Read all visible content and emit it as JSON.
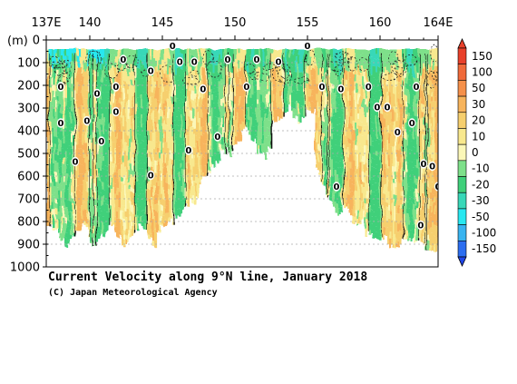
{
  "chart_data": {
    "type": "heatmap",
    "title": "Current Velocity along 9°N line, January 2018",
    "credit": "(C) Japan Meteorological Agency",
    "x_unit_label": "",
    "y_unit_label": "(m)",
    "xlim": [
      137,
      164
    ],
    "ylim": [
      0,
      1000
    ],
    "x_ticks": [
      {
        "value": 137,
        "label": "137E"
      },
      {
        "value": 140,
        "label": "140"
      },
      {
        "value": 145,
        "label": "145"
      },
      {
        "value": 150,
        "label": "150"
      },
      {
        "value": 155,
        "label": "155"
      },
      {
        "value": 160,
        "label": "160"
      },
      {
        "value": 164,
        "label": "164E"
      }
    ],
    "y_ticks": [
      {
        "value": 0,
        "label": "0"
      },
      {
        "value": 100,
        "label": "100"
      },
      {
        "value": 200,
        "label": "200"
      },
      {
        "value": 300,
        "label": "300"
      },
      {
        "value": 400,
        "label": "400"
      },
      {
        "value": 500,
        "label": "500"
      },
      {
        "value": 600,
        "label": "600"
      },
      {
        "value": 700,
        "label": "700"
      },
      {
        "value": 800,
        "label": "800"
      },
      {
        "value": 900,
        "label": "900"
      },
      {
        "value": 1000,
        "label": "1000"
      }
    ],
    "grid": "dashed horizontal at 100 m intervals",
    "colorbar": {
      "placement": "right",
      "levels": [
        {
          "label": "150",
          "color": "#e8402a"
        },
        {
          "label": "100",
          "color": "#f06a3a"
        },
        {
          "label": "50",
          "color": "#f5904a"
        },
        {
          "label": "30",
          "color": "#f7b45c"
        },
        {
          "label": "20",
          "color": "#f6cf6e"
        },
        {
          "label": "10",
          "color": "#f8e88e"
        },
        {
          "label": "0",
          "color": "#fbf7b8"
        },
        {
          "label": "-10",
          "color": "#7ee08a"
        },
        {
          "label": "-20",
          "color": "#3fd07a"
        },
        {
          "label": "-30",
          "color": "#38d8b8"
        },
        {
          "label": "-50",
          "color": "#28e8f0"
        },
        {
          "label": "-100",
          "color": "#38b4f0"
        },
        {
          "label": "-150",
          "color": "#2c6ef0"
        }
      ],
      "bottom_color": "#2046e8"
    },
    "zero_contour_labels": [
      {
        "lon": 142.3,
        "depth": 100,
        "text": "0"
      },
      {
        "lon": 145.7,
        "depth": 40,
        "text": "0"
      },
      {
        "lon": 146.2,
        "depth": 110,
        "text": "0"
      },
      {
        "lon": 147.2,
        "depth": 110,
        "text": "0"
      },
      {
        "lon": 149.5,
        "depth": 100,
        "text": "0"
      },
      {
        "lon": 151.5,
        "depth": 100,
        "text": "0"
      },
      {
        "lon": 153.0,
        "depth": 110,
        "text": "0"
      },
      {
        "lon": 155.0,
        "depth": 40,
        "text": "0"
      },
      {
        "lon": 138.0,
        "depth": 220,
        "text": "0"
      },
      {
        "lon": 140.5,
        "depth": 250,
        "text": "0"
      },
      {
        "lon": 141.8,
        "depth": 220,
        "text": "0"
      },
      {
        "lon": 144.2,
        "depth": 150,
        "text": "0"
      },
      {
        "lon": 147.8,
        "depth": 230,
        "text": "0"
      },
      {
        "lon": 150.8,
        "depth": 220,
        "text": "0"
      },
      {
        "lon": 156.0,
        "depth": 220,
        "text": "0"
      },
      {
        "lon": 157.3,
        "depth": 230,
        "text": "0"
      },
      {
        "lon": 159.2,
        "depth": 220,
        "text": "0"
      },
      {
        "lon": 162.5,
        "depth": 220,
        "text": "0"
      },
      {
        "lon": 138.0,
        "depth": 380,
        "text": "0"
      },
      {
        "lon": 139.8,
        "depth": 370,
        "text": "0"
      },
      {
        "lon": 141.8,
        "depth": 330,
        "text": "0"
      },
      {
        "lon": 159.8,
        "depth": 310,
        "text": "0"
      },
      {
        "lon": 160.5,
        "depth": 310,
        "text": "0"
      },
      {
        "lon": 161.2,
        "depth": 420,
        "text": "0"
      },
      {
        "lon": 162.2,
        "depth": 380,
        "text": "0"
      },
      {
        "lon": 140.8,
        "depth": 460,
        "text": "0"
      },
      {
        "lon": 146.8,
        "depth": 500,
        "text": "0"
      },
      {
        "lon": 148.8,
        "depth": 440,
        "text": "0"
      },
      {
        "lon": 139.0,
        "depth": 550,
        "text": "0"
      },
      {
        "lon": 144.2,
        "depth": 610,
        "text": "0"
      },
      {
        "lon": 157.0,
        "depth": 660,
        "text": "0"
      },
      {
        "lon": 163.0,
        "depth": 560,
        "text": "0"
      },
      {
        "lon": 163.6,
        "depth": 570,
        "text": "0"
      },
      {
        "lon": 164.0,
        "depth": 660,
        "text": "0"
      },
      {
        "lon": 162.8,
        "depth": 830,
        "text": "0"
      }
    ]
  }
}
